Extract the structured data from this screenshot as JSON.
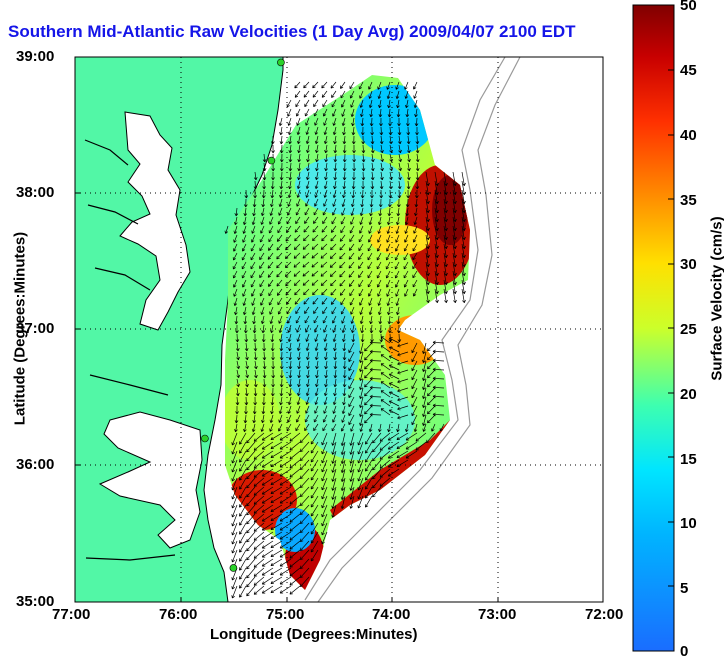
{
  "title": "Southern Mid-Atlantic Raw Velocities (1 Day Avg) 2009/04/07 2100 EDT",
  "axes": {
    "xlabel": "Longitude (Degrees:Minutes)",
    "ylabel": "Latitude (Degrees:Minutes)",
    "x_ticks": [
      "77:00",
      "76:00",
      "75:00",
      "74:00",
      "73:00",
      "72:00"
    ],
    "y_ticks": [
      "39:00",
      "38:00",
      "37:00",
      "36:00",
      "35:00"
    ],
    "x_range_deg_west": [
      77,
      72
    ],
    "y_range_deg_north": [
      35,
      39
    ],
    "grid": "dotted"
  },
  "colorbar": {
    "label": "Surface Velocity (cm/s)",
    "range": [
      0,
      50
    ],
    "ticks": [
      "0",
      "5",
      "10",
      "15",
      "20",
      "25",
      "30",
      "35",
      "40",
      "45",
      "50"
    ],
    "colors": [
      "#1a6dff",
      "#00e5ff",
      "#3dffb0",
      "#ccff2a",
      "#ffb600",
      "#ff3000",
      "#800000"
    ]
  },
  "colors": {
    "land": "#52f7a6",
    "coastline": "#000000",
    "bathymetry": "#9a9a9a",
    "station": "#2ad22a",
    "vectors": "#000000"
  },
  "stations": [
    {
      "lon": 75.05,
      "lat": 38.96
    },
    {
      "lon": 75.14,
      "lat": 38.24
    },
    {
      "lon": 75.77,
      "lat": 36.2
    },
    {
      "lon": 75.5,
      "lat": 35.25
    }
  ]
}
